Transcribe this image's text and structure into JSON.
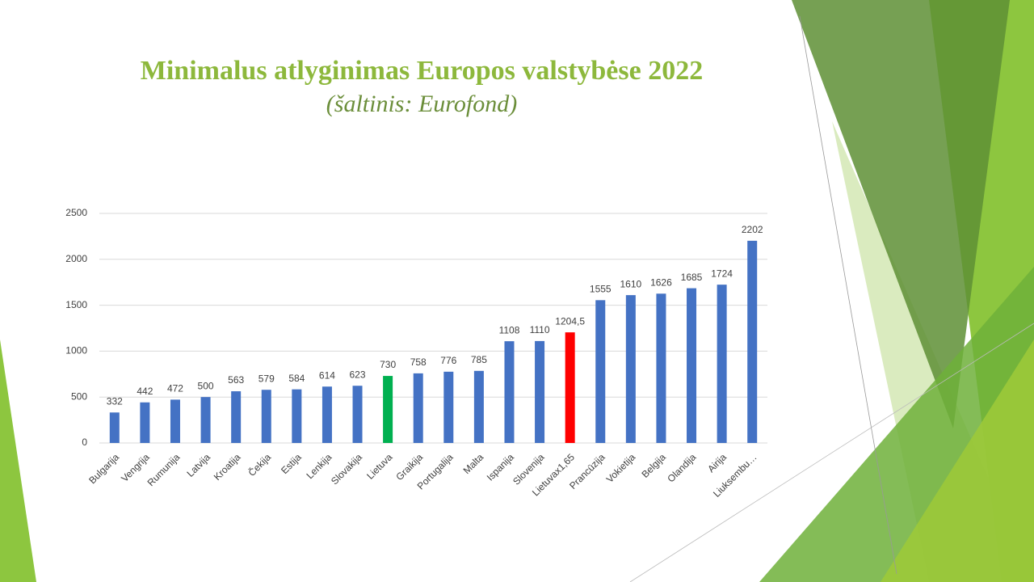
{
  "chart_data": {
    "type": "bar",
    "title": "Minimalus atlyginimas Europos valstybėse 2022",
    "subtitle": "(šaltinis: Eurofond)",
    "categories": [
      "Bulgarija",
      "Vengrija",
      "Rumunija",
      "Latvija",
      "Kroatija",
      "Čekija",
      "Estija",
      "Lenkija",
      "Slovakija",
      "Lietuva",
      "Graikija",
      "Portugalija",
      "Malta",
      "Ispanija",
      "Slovenija",
      "Lietuvax1,65",
      "Prancūzija",
      "Vokietija",
      "Belgija",
      "Olandija",
      "Airija",
      "Liuksembu…"
    ],
    "values": [
      332,
      442,
      472,
      500,
      563,
      579,
      584,
      614,
      623,
      730,
      758,
      776,
      785,
      1108,
      1110,
      1204.5,
      1555,
      1610,
      1626,
      1685,
      1724,
      2202
    ],
    "value_labels": [
      "332",
      "442",
      "472",
      "500",
      "563",
      "579",
      "584",
      "614",
      "623",
      "730",
      "758",
      "776",
      "785",
      "1108",
      "1110",
      "1204,5",
      "1555",
      "1610",
      "1626",
      "1685",
      "1724",
      "2202"
    ],
    "colors": [
      "#4472c4",
      "#4472c4",
      "#4472c4",
      "#4472c4",
      "#4472c4",
      "#4472c4",
      "#4472c4",
      "#4472c4",
      "#4472c4",
      "#00b050",
      "#4472c4",
      "#4472c4",
      "#4472c4",
      "#4472c4",
      "#4472c4",
      "#ff0000",
      "#4472c4",
      "#4472c4",
      "#4472c4",
      "#4472c4",
      "#4472c4",
      "#4472c4"
    ],
    "ylim": [
      0,
      2500
    ],
    "yticks": [
      0,
      500,
      1000,
      1500,
      2000,
      2500
    ],
    "grid": true
  }
}
